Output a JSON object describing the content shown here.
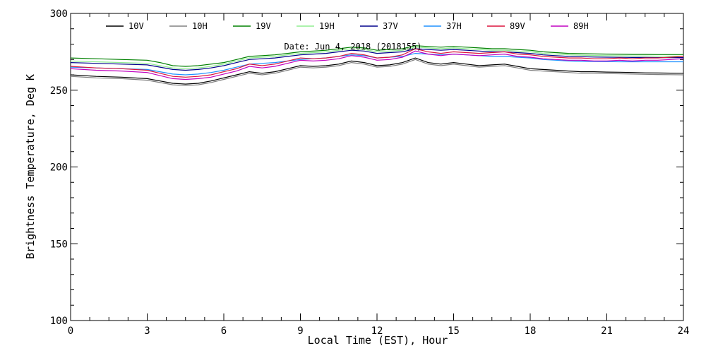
{
  "chart_data": {
    "type": "line",
    "title": "Date: Jun  4, 2018 (2018155)",
    "xlabel": "Local Time (EST), Hour",
    "ylabel": "Brightness Temperature, Deg K",
    "xlim": [
      0,
      24
    ],
    "ylim": [
      100,
      300
    ],
    "xticks": [
      0,
      3,
      6,
      9,
      12,
      15,
      18,
      21,
      24
    ],
    "yticks": [
      100,
      150,
      200,
      250,
      300
    ],
    "grid": false,
    "legend": "top",
    "x": [
      0,
      1,
      2,
      3,
      3.5,
      4,
      4.5,
      5,
      5.5,
      6,
      6.5,
      7,
      7.5,
      8,
      8.5,
      9,
      9.5,
      10,
      10.5,
      11,
      11.5,
      12,
      12.5,
      13,
      13.5,
      14,
      14.5,
      15,
      15.5,
      16,
      16.5,
      17,
      17.5,
      18,
      18.5,
      19,
      19.5,
      20,
      20.5,
      21,
      21.5,
      22,
      22.5,
      23,
      23.5,
      24
    ],
    "series": [
      {
        "name": "10V",
        "color": "#000000",
        "values": [
          260,
          259,
          258.5,
          257.5,
          256,
          254.5,
          254,
          254.5,
          256,
          258,
          260,
          262,
          261,
          262,
          264,
          266,
          265.5,
          266,
          267,
          269,
          268,
          266,
          266.5,
          268,
          271,
          268,
          267,
          268,
          267,
          266,
          266.5,
          267,
          265.5,
          264,
          263.5,
          263,
          262.5,
          262,
          262,
          261.8,
          261.7,
          261.5,
          261.3,
          261.2,
          261.1,
          261
        ]
      },
      {
        "name": "10H",
        "color": "#808080",
        "values": [
          259,
          258,
          257.5,
          256.5,
          255,
          253.5,
          253,
          253.5,
          255,
          257,
          259,
          261,
          260,
          261,
          263,
          265,
          264.5,
          265,
          266,
          268,
          267,
          265,
          265.5,
          267,
          270,
          267,
          266,
          267,
          266,
          265,
          265.5,
          266,
          264.5,
          263,
          262.5,
          262,
          261.5,
          261,
          261,
          260.8,
          260.7,
          260.5,
          260.3,
          260.2,
          260.1,
          260
        ]
      },
      {
        "name": "19V",
        "color": "#008000",
        "values": [
          271,
          270.5,
          270,
          269.5,
          268,
          266,
          265.5,
          266,
          267,
          268,
          270,
          272,
          272.5,
          273,
          274,
          275,
          275.5,
          276,
          277,
          278,
          277.5,
          276,
          276.5,
          277,
          279,
          278.5,
          278,
          278.5,
          278,
          277.5,
          277,
          277,
          276.5,
          276,
          275,
          274.5,
          274,
          273.8,
          273.6,
          273.5,
          273.4,
          273.3,
          273.3,
          273.2,
          273.2,
          273.2
        ]
      },
      {
        "name": "19H",
        "color": "#90ee90",
        "values": [
          269,
          268.5,
          268,
          267.5,
          266,
          264.5,
          264,
          264.5,
          265.5,
          267,
          269,
          271,
          271.5,
          272,
          273,
          274,
          274.5,
          275,
          276,
          277,
          276.5,
          275,
          275.5,
          276,
          278,
          277.5,
          277,
          277.5,
          277,
          276.5,
          276,
          276,
          275.5,
          275,
          274,
          273.5,
          273,
          272.8,
          272.6,
          272.5,
          272.4,
          272.3,
          272.3,
          272.2,
          272.2,
          272.2
        ]
      },
      {
        "name": "37V",
        "color": "#00008b",
        "values": [
          268,
          267.5,
          267,
          266.5,
          265,
          263.5,
          263,
          263.5,
          264.5,
          266,
          268,
          270,
          270.5,
          271,
          272,
          273,
          273.5,
          274,
          275,
          276,
          275.5,
          274,
          274.5,
          275,
          277,
          276.5,
          276,
          276.5,
          276,
          275.5,
          275,
          275,
          274.5,
          274,
          273,
          272.5,
          272,
          271.8,
          271.6,
          271.5,
          271.4,
          271.3,
          271.3,
          271.2,
          271.2,
          271.2
        ]
      },
      {
        "name": "37H",
        "color": "#1e90ff",
        "values": [
          265,
          264.5,
          264,
          263.5,
          262,
          260.5,
          260,
          260.5,
          261.5,
          263,
          265,
          267,
          267.5,
          268,
          269,
          270,
          270.5,
          271,
          272,
          273,
          272.5,
          271,
          271.5,
          272,
          274,
          273.5,
          273,
          273.5,
          273,
          272.5,
          272,
          272,
          271.5,
          271,
          270,
          269.5,
          269,
          268.8,
          268.7,
          268.6,
          268.5,
          268.5,
          268.5,
          268.5,
          268.5,
          268.5
        ]
      },
      {
        "name": "89V",
        "color": "#dc143c",
        "values": [
          265.5,
          264.5,
          264,
          263,
          261,
          259,
          258.5,
          259,
          260,
          262,
          264,
          267,
          266,
          267,
          269,
          271,
          270.5,
          271,
          272,
          274,
          273,
          271,
          271.5,
          273,
          277,
          275,
          274,
          275,
          274.5,
          274,
          274.5,
          275,
          273.5,
          273,
          272,
          271.5,
          271,
          271,
          270.5,
          270.5,
          271,
          270.5,
          271,
          271,
          271.5,
          272
        ]
      },
      {
        "name": "89H",
        "color": "#c000c0",
        "values": [
          264,
          263,
          262.5,
          261.5,
          259.5,
          257.5,
          257,
          257.5,
          258.5,
          260.5,
          262.5,
          265.5,
          264.5,
          265.5,
          267.5,
          269.5,
          269,
          269.5,
          270.5,
          272.5,
          271.5,
          269.5,
          270,
          271.5,
          275.5,
          273.5,
          272.5,
          273.5,
          273,
          272.5,
          273,
          273.5,
          272,
          271.5,
          270.5,
          270,
          269.5,
          269.5,
          269,
          269,
          269.5,
          269,
          269.5,
          269.5,
          270,
          270.5
        ]
      }
    ]
  }
}
